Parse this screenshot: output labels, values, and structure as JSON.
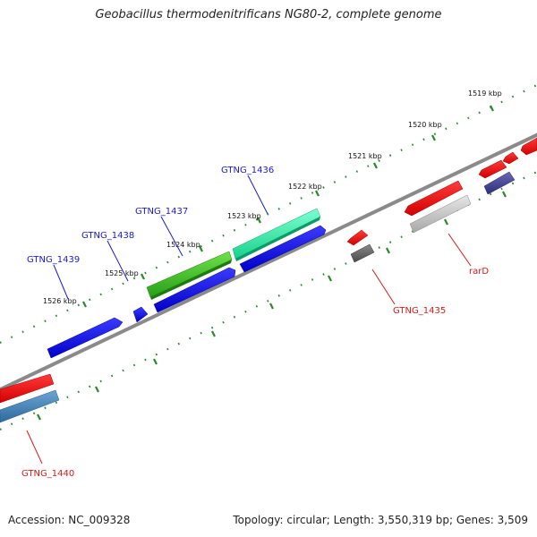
{
  "title": "Geobacillus thermodenitrificans NG80-2, complete genome",
  "accession": "Accession: NC_009328",
  "summary": "Topology: circular; Length: 3,550,319 bp; Genes: 3,509",
  "ticks": [
    "1519 kbp",
    "1520 kbp",
    "1521 kbp",
    "1522 kbp",
    "1523 kbp",
    "1524 kbp",
    "1525 kbp",
    "1526 kbp"
  ],
  "genes": {
    "gtng_1436": "GTNG_1436",
    "gtng_1437": "GTNG_1437",
    "gtng_1438": "GTNG_1438",
    "gtng_1439": "GTNG_1439",
    "gtng_1435": "GTNG_1435",
    "rard": "rarD",
    "gtng_1440": "GTNG_1440"
  },
  "colors": {
    "backbone": "#808080",
    "tick_green": "#2a8a2a",
    "forward_blue": "#0000e0",
    "reverse_red": "#ee1111",
    "cyan_green": "#22e6a0",
    "lime_green": "#3cba2a",
    "grey_feature": "#b8b8b8",
    "dark_grey": "#555555",
    "navy": "#3a3a8a",
    "steel_blue": "#4682b4",
    "label_blue": "#1a1ad6",
    "label_red": "#d81a1a"
  }
}
